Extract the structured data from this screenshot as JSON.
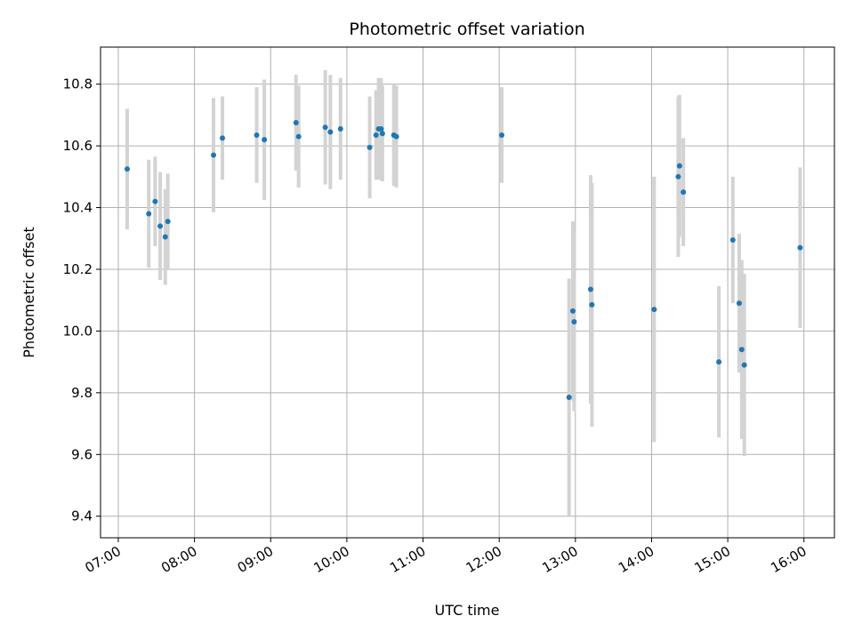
{
  "chart_data": {
    "type": "scatter",
    "title": "Photometric offset variation",
    "xlabel": "UTC time",
    "ylabel": "Photometric offset",
    "xlim": [
      "06:46",
      "16:24"
    ],
    "ylim": [
      9.33,
      10.92
    ],
    "x_ticks": [
      "07:00",
      "08:00",
      "09:00",
      "10:00",
      "11:00",
      "12:00",
      "13:00",
      "14:00",
      "15:00",
      "16:00"
    ],
    "y_ticks": [
      9.4,
      9.6,
      9.8,
      10.0,
      10.2,
      10.4,
      10.6,
      10.8
    ],
    "y_tick_labels": [
      "9.4",
      "9.6",
      "9.8",
      "10.0",
      "10.2",
      "10.4",
      "10.6",
      "10.8"
    ],
    "grid": true,
    "marker_color": "#1f77b4",
    "errorbar_color": "#d3d3d3",
    "points": [
      {
        "x": "07:07",
        "y": 10.525,
        "err": 0.195
      },
      {
        "x": "07:24",
        "y": 10.38,
        "err": 0.175
      },
      {
        "x": "07:29",
        "y": 10.42,
        "err": 0.145
      },
      {
        "x": "07:33",
        "y": 10.34,
        "err": 0.175
      },
      {
        "x": "07:37",
        "y": 10.305,
        "err": 0.155
      },
      {
        "x": "07:39",
        "y": 10.355,
        "err": 0.155
      },
      {
        "x": "08:15",
        "y": 10.57,
        "err": 0.185
      },
      {
        "x": "08:22",
        "y": 10.625,
        "err": 0.135
      },
      {
        "x": "08:49",
        "y": 10.635,
        "err": 0.155
      },
      {
        "x": "08:55",
        "y": 10.62,
        "err": 0.195
      },
      {
        "x": "09:20",
        "y": 10.675,
        "err": 0.155
      },
      {
        "x": "09:22",
        "y": 10.63,
        "err": 0.165
      },
      {
        "x": "09:43",
        "y": 10.66,
        "err": 0.185
      },
      {
        "x": "09:47",
        "y": 10.645,
        "err": 0.185
      },
      {
        "x": "09:55",
        "y": 10.655,
        "err": 0.165
      },
      {
        "x": "10:18",
        "y": 10.595,
        "err": 0.165
      },
      {
        "x": "10:23",
        "y": 10.635,
        "err": 0.145
      },
      {
        "x": "10:25",
        "y": 10.655,
        "err": 0.165
      },
      {
        "x": "10:27",
        "y": 10.655,
        "err": 0.165
      },
      {
        "x": "10:28",
        "y": 10.64,
        "err": 0.155
      },
      {
        "x": "10:37",
        "y": 10.635,
        "err": 0.165
      },
      {
        "x": "10:39",
        "y": 10.63,
        "err": 0.165
      },
      {
        "x": "12:02",
        "y": 10.635,
        "err": 0.155
      },
      {
        "x": "12:55",
        "y": 9.785,
        "err": 0.385
      },
      {
        "x": "12:58",
        "y": 10.065,
        "err": 0.29
      },
      {
        "x": "12:59",
        "y": 10.03,
        "err": 0.29
      },
      {
        "x": "13:12",
        "y": 10.135,
        "err": 0.37
      },
      {
        "x": "13:13",
        "y": 10.085,
        "err": 0.395
      },
      {
        "x": "14:02",
        "y": 10.07,
        "err": 0.43
      },
      {
        "x": "14:21",
        "y": 10.5,
        "err": 0.26
      },
      {
        "x": "14:22",
        "y": 10.535,
        "err": 0.23
      },
      {
        "x": "14:25",
        "y": 10.45,
        "err": 0.175
      },
      {
        "x": "14:53",
        "y": 9.9,
        "err": 0.245
      },
      {
        "x": "15:04",
        "y": 10.295,
        "err": 0.205
      },
      {
        "x": "15:09",
        "y": 10.09,
        "err": 0.225
      },
      {
        "x": "15:11",
        "y": 9.94,
        "err": 0.29
      },
      {
        "x": "15:13",
        "y": 9.89,
        "err": 0.295
      },
      {
        "x": "15:57",
        "y": 10.27,
        "err": 0.26
      }
    ]
  }
}
